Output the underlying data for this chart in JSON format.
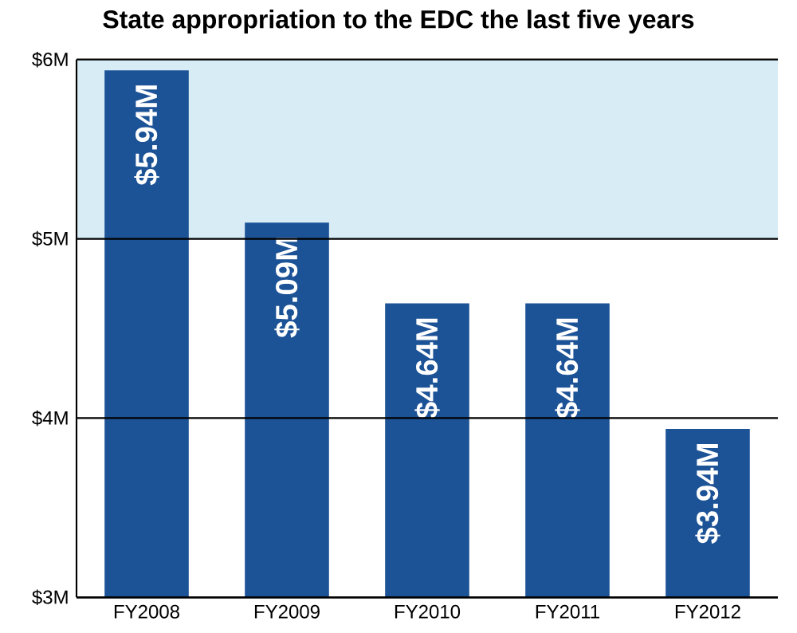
{
  "chart_data": {
    "type": "bar",
    "title": "State appropriation to the EDC the last five years",
    "categories": [
      "FY2008",
      "FY2009",
      "FY2010",
      "FY2011",
      "FY2012"
    ],
    "values": [
      5.94,
      5.09,
      4.64,
      4.64,
      3.94
    ],
    "value_labels": [
      "$5.94M",
      "$5.09M",
      "$4.64M",
      "$4.64M",
      "$3.94M"
    ],
    "color": "#1c5296",
    "ylim": [
      3,
      6
    ],
    "yticks": [
      {
        "value": 3,
        "label": "$3M"
      },
      {
        "value": 4,
        "label": "$4M"
      },
      {
        "value": 5,
        "label": "$5M"
      },
      {
        "value": 6,
        "label": "$6M"
      }
    ],
    "grid": "y",
    "bands": [
      {
        "axis": "y",
        "from": 5,
        "to": 6,
        "color": "#d8ecf6"
      }
    ]
  }
}
